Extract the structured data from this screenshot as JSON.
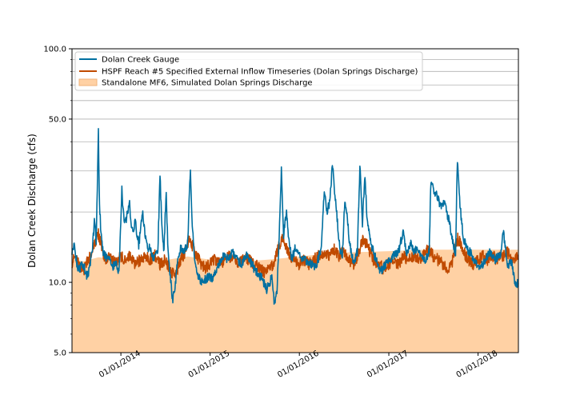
{
  "chart_data": {
    "type": "line",
    "title": "",
    "xlabel": "",
    "ylabel": "Dolan Creek Discharge (cfs)",
    "y_scale": "log",
    "ylim": [
      5.0,
      100.0
    ],
    "xlim": [
      "2013-06-15",
      "2018-06-15"
    ],
    "y_ticks": [
      {
        "value": 5.0,
        "label": "5.0"
      },
      {
        "value": 10.0,
        "label": "10.0"
      },
      {
        "value": 50.0,
        "label": "50.0"
      },
      {
        "value": 100.0,
        "label": "100.0"
      }
    ],
    "y_minor_ticks": [
      6,
      7,
      8,
      9,
      20,
      30,
      40,
      60,
      70,
      80,
      90
    ],
    "x_ticks": [
      {
        "value": "2014-01-01",
        "label": "01/01/2014"
      },
      {
        "value": "2015-01-01",
        "label": "01/01/2015"
      },
      {
        "value": "2016-01-01",
        "label": "01/01/2016"
      },
      {
        "value": "2017-01-01",
        "label": "01/01/2017"
      },
      {
        "value": "2018-01-01",
        "label": "01/01/2018"
      }
    ],
    "grid": "horizontal",
    "legend_position": "top-left",
    "series": [
      {
        "name": "Dolan Creek Gauge",
        "kind": "line",
        "color": "#006fa0",
        "points": [
          [
            "2013-06-15",
            13.5
          ],
          [
            "2013-06-25",
            14.5
          ],
          [
            "2013-07-05",
            12.0
          ],
          [
            "2013-07-15",
            11.2
          ],
          [
            "2013-07-25",
            12.0
          ],
          [
            "2013-08-05",
            11.5
          ],
          [
            "2013-08-15",
            10.5
          ],
          [
            "2013-08-25",
            11.5
          ],
          [
            "2013-09-05",
            13.5
          ],
          [
            "2013-09-15",
            18.5
          ],
          [
            "2013-09-22",
            15.0
          ],
          [
            "2013-10-01",
            44.0
          ],
          [
            "2013-10-05",
            22.0
          ],
          [
            "2013-10-12",
            16.0
          ],
          [
            "2013-10-20",
            13.5
          ],
          [
            "2013-11-01",
            12.8
          ],
          [
            "2013-11-15",
            12.5
          ],
          [
            "2013-11-25",
            11.5
          ],
          [
            "2013-12-10",
            12.0
          ],
          [
            "2013-12-25",
            11.2
          ],
          [
            "2014-01-05",
            25.0
          ],
          [
            "2014-01-12",
            19.0
          ],
          [
            "2014-01-20",
            18.0
          ],
          [
            "2014-02-05",
            22.0
          ],
          [
            "2014-02-15",
            16.5
          ],
          [
            "2014-03-01",
            18.0
          ],
          [
            "2014-03-15",
            14.5
          ],
          [
            "2014-04-01",
            20.0
          ],
          [
            "2014-04-10",
            16.0
          ],
          [
            "2014-04-20",
            14.0
          ],
          [
            "2014-05-01",
            14.0
          ],
          [
            "2014-05-15",
            12.5
          ],
          [
            "2014-06-01",
            13.5
          ],
          [
            "2014-06-10",
            29.0
          ],
          [
            "2014-06-18",
            17.0
          ],
          [
            "2014-06-26",
            13.5
          ],
          [
            "2014-07-05",
            25.0
          ],
          [
            "2014-07-12",
            14.0
          ],
          [
            "2014-07-20",
            11.0
          ],
          [
            "2014-08-01",
            8.3
          ],
          [
            "2014-08-10",
            9.5
          ],
          [
            "2014-08-20",
            12.0
          ],
          [
            "2014-09-01",
            14.0
          ],
          [
            "2014-09-15",
            13.5
          ],
          [
            "2014-10-01",
            14.5
          ],
          [
            "2014-10-12",
            31.0
          ],
          [
            "2014-10-20",
            17.0
          ],
          [
            "2014-11-01",
            12.0
          ],
          [
            "2014-11-15",
            10.5
          ],
          [
            "2014-12-01",
            10.0
          ],
          [
            "2014-12-20",
            10.5
          ],
          [
            "2015-01-10",
            10.5
          ],
          [
            "2015-02-01",
            11.5
          ],
          [
            "2015-02-20",
            13.0
          ],
          [
            "2015-03-10",
            12.5
          ],
          [
            "2015-04-01",
            13.5
          ],
          [
            "2015-04-20",
            12.5
          ],
          [
            "2015-05-10",
            12.0
          ],
          [
            "2015-06-01",
            13.0
          ],
          [
            "2015-06-20",
            12.0
          ],
          [
            "2015-07-10",
            11.0
          ],
          [
            "2015-08-01",
            10.5
          ],
          [
            "2015-08-20",
            9.3
          ],
          [
            "2015-09-10",
            10.5
          ],
          [
            "2015-09-20",
            8.2
          ],
          [
            "2015-10-01",
            9.0
          ],
          [
            "2015-10-10",
            15.0
          ],
          [
            "2015-10-20",
            31.0
          ],
          [
            "2015-10-28",
            16.0
          ],
          [
            "2015-11-10",
            20.0
          ],
          [
            "2015-11-20",
            15.0
          ],
          [
            "2015-12-01",
            12.5
          ],
          [
            "2015-12-15",
            14.0
          ],
          [
            "2016-01-01",
            13.0
          ],
          [
            "2016-01-20",
            12.5
          ],
          [
            "2016-02-10",
            12.0
          ],
          [
            "2016-03-01",
            11.8
          ],
          [
            "2016-03-15",
            12.2
          ],
          [
            "2016-04-01",
            14.5
          ],
          [
            "2016-04-12",
            25.0
          ],
          [
            "2016-04-22",
            20.0
          ],
          [
            "2016-05-05",
            22.0
          ],
          [
            "2016-05-15",
            32.5
          ],
          [
            "2016-05-25",
            24.0
          ],
          [
            "2016-06-05",
            18.0
          ],
          [
            "2016-06-15",
            14.0
          ],
          [
            "2016-06-25",
            13.0
          ],
          [
            "2016-07-05",
            23.0
          ],
          [
            "2016-07-15",
            19.0
          ],
          [
            "2016-07-25",
            14.5
          ],
          [
            "2016-08-10",
            12.0
          ],
          [
            "2016-08-25",
            13.5
          ],
          [
            "2016-09-05",
            32.0
          ],
          [
            "2016-09-15",
            18.0
          ],
          [
            "2016-09-25",
            29.0
          ],
          [
            "2016-10-05",
            18.0
          ],
          [
            "2016-10-20",
            14.5
          ],
          [
            "2016-11-10",
            12.5
          ],
          [
            "2016-11-25",
            11.0
          ],
          [
            "2016-12-10",
            11.5
          ],
          [
            "2017-01-01",
            12.5
          ],
          [
            "2017-01-20",
            13.0
          ],
          [
            "2017-02-10",
            13.5
          ],
          [
            "2017-03-01",
            16.5
          ],
          [
            "2017-03-15",
            13.0
          ],
          [
            "2017-04-01",
            14.5
          ],
          [
            "2017-04-15",
            13.5
          ],
          [
            "2017-05-01",
            14.0
          ],
          [
            "2017-05-15",
            13.0
          ],
          [
            "2017-06-01",
            12.5
          ],
          [
            "2017-06-15",
            13.5
          ],
          [
            "2017-06-22",
            27.0
          ],
          [
            "2017-07-01",
            25.0
          ],
          [
            "2017-07-15",
            24.0
          ],
          [
            "2017-08-01",
            21.0
          ],
          [
            "2017-08-15",
            22.0
          ],
          [
            "2017-09-01",
            19.0
          ],
          [
            "2017-09-15",
            16.0
          ],
          [
            "2017-10-01",
            13.0
          ],
          [
            "2017-10-08",
            33.5
          ],
          [
            "2017-10-18",
            22.0
          ],
          [
            "2017-11-01",
            15.5
          ],
          [
            "2017-11-15",
            14.0
          ],
          [
            "2017-12-01",
            13.5
          ],
          [
            "2017-12-20",
            12.0
          ],
          [
            "2018-01-10",
            11.5
          ],
          [
            "2018-02-01",
            12.5
          ],
          [
            "2018-02-20",
            13.5
          ],
          [
            "2018-03-10",
            12.5
          ],
          [
            "2018-04-01",
            13.0
          ],
          [
            "2018-04-15",
            16.5
          ],
          [
            "2018-05-01",
            12.0
          ],
          [
            "2018-05-20",
            12.0
          ],
          [
            "2018-06-01",
            10.0
          ],
          [
            "2018-06-15",
            9.8
          ]
        ]
      },
      {
        "name": "HSPF Reach #5 Specified External Inflow Timeseries (Dolan Springs Discharge)",
        "kind": "line",
        "color": "#c04a00",
        "points": [
          [
            "2013-06-15",
            12.2
          ],
          [
            "2013-07-01",
            13.0
          ],
          [
            "2013-07-15",
            12.0
          ],
          [
            "2013-08-01",
            11.0
          ],
          [
            "2013-08-15",
            12.5
          ],
          [
            "2013-09-01",
            13.0
          ],
          [
            "2013-09-15",
            14.5
          ],
          [
            "2013-10-01",
            16.0
          ],
          [
            "2013-10-15",
            14.0
          ],
          [
            "2013-11-01",
            12.5
          ],
          [
            "2013-11-20",
            13.0
          ],
          [
            "2013-12-10",
            12.0
          ],
          [
            "2014-01-01",
            13.0
          ],
          [
            "2014-01-20",
            12.5
          ],
          [
            "2014-02-10",
            13.0
          ],
          [
            "2014-03-01",
            12.0
          ],
          [
            "2014-03-20",
            12.5
          ],
          [
            "2014-04-10",
            13.0
          ],
          [
            "2014-05-01",
            12.5
          ],
          [
            "2014-05-20",
            13.0
          ],
          [
            "2014-06-10",
            12.0
          ],
          [
            "2014-07-01",
            12.5
          ],
          [
            "2014-07-20",
            11.5
          ],
          [
            "2014-08-10",
            10.5
          ],
          [
            "2014-09-01",
            12.5
          ],
          [
            "2014-09-20",
            13.5
          ],
          [
            "2014-10-10",
            15.5
          ],
          [
            "2014-10-25",
            14.0
          ],
          [
            "2014-11-15",
            12.5
          ],
          [
            "2014-12-10",
            11.5
          ],
          [
            "2015-01-01",
            12.0
          ],
          [
            "2015-01-20",
            12.5
          ],
          [
            "2015-02-10",
            12.0
          ],
          [
            "2015-03-01",
            12.5
          ],
          [
            "2015-03-20",
            13.0
          ],
          [
            "2015-04-10",
            12.5
          ],
          [
            "2015-05-01",
            12.0
          ],
          [
            "2015-05-20",
            13.0
          ],
          [
            "2015-06-10",
            12.5
          ],
          [
            "2015-07-01",
            12.0
          ],
          [
            "2015-07-20",
            11.5
          ],
          [
            "2015-08-10",
            11.0
          ],
          [
            "2015-09-01",
            11.5
          ],
          [
            "2015-09-20",
            12.0
          ],
          [
            "2015-10-10",
            14.5
          ],
          [
            "2015-10-25",
            15.5
          ],
          [
            "2015-11-15",
            13.5
          ],
          [
            "2015-12-10",
            12.5
          ],
          [
            "2016-01-01",
            12.0
          ],
          [
            "2016-01-20",
            12.5
          ],
          [
            "2016-02-10",
            12.0
          ],
          [
            "2016-03-01",
            12.5
          ],
          [
            "2016-03-20",
            13.0
          ],
          [
            "2016-04-10",
            13.5
          ],
          [
            "2016-05-01",
            13.0
          ],
          [
            "2016-05-20",
            14.0
          ],
          [
            "2016-06-10",
            13.0
          ],
          [
            "2016-07-01",
            13.5
          ],
          [
            "2016-07-20",
            12.5
          ],
          [
            "2016-08-10",
            12.0
          ],
          [
            "2016-09-01",
            13.5
          ],
          [
            "2016-09-20",
            15.5
          ],
          [
            "2016-10-10",
            14.0
          ],
          [
            "2016-10-30",
            12.5
          ],
          [
            "2016-11-20",
            12.0
          ],
          [
            "2016-12-10",
            11.5
          ],
          [
            "2017-01-01",
            12.0
          ],
          [
            "2017-01-20",
            12.5
          ],
          [
            "2017-02-10",
            12.0
          ],
          [
            "2017-03-01",
            13.0
          ],
          [
            "2017-03-20",
            12.5
          ],
          [
            "2017-04-10",
            13.0
          ],
          [
            "2017-05-01",
            12.5
          ],
          [
            "2017-05-20",
            13.0
          ],
          [
            "2017-06-10",
            14.0
          ],
          [
            "2017-07-01",
            13.0
          ],
          [
            "2017-07-20",
            12.5
          ],
          [
            "2017-08-10",
            12.0
          ],
          [
            "2017-09-01",
            11.0
          ],
          [
            "2017-09-20",
            12.5
          ],
          [
            "2017-10-10",
            15.5
          ],
          [
            "2017-10-30",
            14.0
          ],
          [
            "2017-11-20",
            12.5
          ],
          [
            "2017-12-10",
            12.0
          ],
          [
            "2018-01-01",
            12.5
          ],
          [
            "2018-01-20",
            13.0
          ],
          [
            "2018-02-10",
            12.5
          ],
          [
            "2018-03-01",
            13.0
          ],
          [
            "2018-03-20",
            12.5
          ],
          [
            "2018-04-10",
            13.0
          ],
          [
            "2018-05-01",
            13.5
          ],
          [
            "2018-05-20",
            12.5
          ],
          [
            "2018-06-15",
            12.8
          ]
        ]
      },
      {
        "name": "Standalone MF6, Simulated Dolan Springs Discharge",
        "kind": "area",
        "color": "#ffd1a4",
        "points": [
          [
            "2013-06-15",
            12.6
          ],
          [
            "2013-08-01",
            12.3
          ],
          [
            "2013-10-01",
            12.8
          ],
          [
            "2014-01-01",
            12.6
          ],
          [
            "2014-06-01",
            12.3
          ],
          [
            "2014-10-01",
            12.9
          ],
          [
            "2015-01-01",
            12.5
          ],
          [
            "2015-06-01",
            12.3
          ],
          [
            "2015-10-01",
            12.6
          ],
          [
            "2016-01-01",
            12.9
          ],
          [
            "2016-06-01",
            13.4
          ],
          [
            "2016-10-01",
            13.5
          ],
          [
            "2017-01-01",
            13.6
          ],
          [
            "2017-06-01",
            13.8
          ],
          [
            "2017-10-01",
            13.8
          ],
          [
            "2018-01-01",
            13.8
          ],
          [
            "2018-06-15",
            13.8
          ]
        ]
      }
    ]
  }
}
